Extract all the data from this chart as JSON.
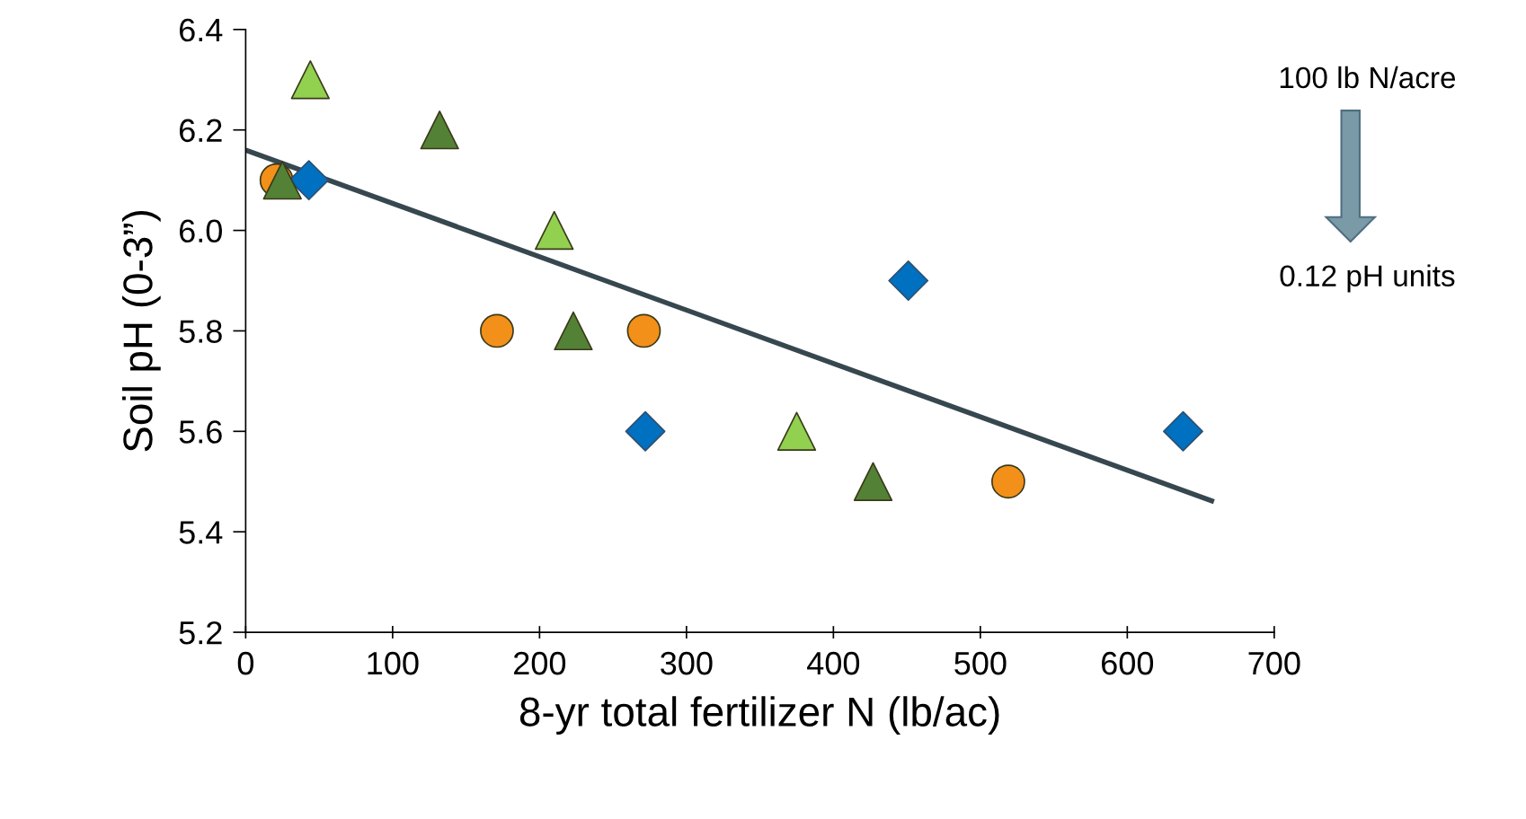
{
  "chart_data": {
    "type": "scatter",
    "xlabel": "8-yr total fertilizer N (lb/ac)",
    "ylabel": "Soil pH (0-3”)",
    "xlim": [
      0,
      700
    ],
    "xticks": [
      0,
      100,
      200,
      300,
      400,
      500,
      600,
      700
    ],
    "ylim": [
      5.2,
      6.4
    ],
    "yticks": [
      {
        "value": 5.2,
        "label": "5.2"
      },
      {
        "value": 5.4,
        "label": "5.4"
      },
      {
        "value": 5.6,
        "label": "5.6"
      },
      {
        "value": 5.8,
        "label": "5.8"
      },
      {
        "value": 6.0,
        "label": "6.0"
      },
      {
        "value": 6.2,
        "label": "6.2"
      },
      {
        "value": 6.4,
        "label": "6.4"
      }
    ],
    "grid": false,
    "legend": false,
    "series": [
      {
        "color": "#f39019",
        "marker": "circle",
        "x": [
          21,
          171,
          271,
          519
        ],
        "values": [
          6.1,
          5.8,
          5.8,
          5.5
        ]
      },
      {
        "color": "#0070c0",
        "marker": "diamond",
        "x": [
          43,
          272,
          451,
          638
        ],
        "values": [
          6.1,
          5.6,
          5.9,
          5.6
        ]
      },
      {
        "color": "#92d050",
        "marker": "triangle",
        "x": [
          44,
          210,
          375
        ],
        "values": [
          6.3,
          6.0,
          5.6
        ]
      },
      {
        "color": "#538135",
        "marker": "triangle",
        "x": [
          25,
          132,
          223,
          427
        ],
        "values": [
          6.1,
          6.2,
          5.8,
          5.5
        ]
      },
      {
        "type": "line",
        "color": "#37474f",
        "marker": "none",
        "line_style": "solid",
        "x": [
          0,
          659
        ],
        "values": [
          6.16,
          5.46
        ]
      }
    ],
    "annotations": [
      "100 lb N/acre",
      "0.12 pH units"
    ]
  }
}
